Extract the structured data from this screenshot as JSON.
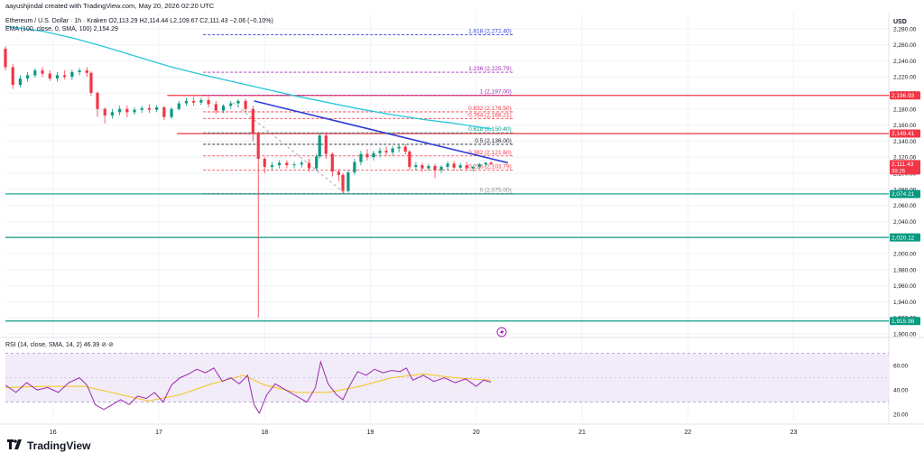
{
  "header": {
    "author_line": "aayushjindal created with TradingView.com, May 20, 2026 02:20 UTC",
    "symbol_line": "Ethereum / U.S. Dollar · 1h · Kraken  O2,113.29  H2,114.44  L2,109.67  C2,111.43  −2.06 (−0.10%)",
    "ema_line": "EMA (100, close, 0, SMA, 100)  2,154.29",
    "rsi_line": "RSI (14, close, SMA, 14, 2)  46.39  ⊘  ⊘"
  },
  "branding": {
    "logo_text": "TradingView",
    "icon": "tradingview-logo-icon"
  },
  "colors": {
    "up": "#089981",
    "down": "#f23645",
    "ema": "#26c6da",
    "trendline": "#2f3fd6",
    "resistance": "#f23645",
    "support": "#089981",
    "fib": "#9c27b0",
    "rsi": "#9c27b0",
    "rsi_band": "#ede7f6",
    "rsi_ma": "#f5c518"
  },
  "chart_data": {
    "type": "candlestick",
    "currency_label": "USD",
    "x_tick_labels": [
      "16",
      "17",
      "18",
      "19",
      "20",
      "21",
      "22",
      "23"
    ],
    "x_ticks": [
      16,
      17,
      18,
      19,
      20,
      21,
      22,
      23
    ],
    "xlim": [
      15.55,
      23.9
    ],
    "ylim": [
      1900,
      2300
    ],
    "y_ticks": [
      1900,
      1920,
      1940,
      1960,
      1980,
      2000,
      2020,
      2040,
      2060,
      2080,
      2100,
      2120,
      2140,
      2160,
      2180,
      2200,
      2220,
      2240,
      2260,
      2280
    ],
    "y_tick_labels": [
      "1,900.00",
      "1,920.00",
      "1,940.00",
      "1,960.00",
      "1,980.00",
      "2,000.00",
      "2,020.00",
      "2,040.00",
      "2,060.00",
      "2,080.00",
      "2,100.00",
      "2,120.00",
      "2,140.00",
      "2,160.00",
      "2,180.00",
      "2,200.00",
      "2,220.00",
      "2,240.00",
      "2,260.00",
      "2,280.00"
    ],
    "price_badges": [
      {
        "value": 2196.93,
        "label": "2,196.93",
        "color": "#f23645"
      },
      {
        "value": 2149.41,
        "label": "2,149.41",
        "color": "#f23645"
      },
      {
        "value": 2111.43,
        "label": "2,111.43",
        "sub": "39:26",
        "color": "#f23645"
      },
      {
        "value": 2074.21,
        "label": "2,074.21",
        "color": "#089981"
      },
      {
        "value": 2020.12,
        "label": "2,020.12",
        "color": "#089981"
      },
      {
        "value": 1915.98,
        "label": "1,915.98",
        "color": "#089981"
      }
    ],
    "horizontal_lines": [
      {
        "value": 2196.93,
        "color": "#f23645",
        "start": 17.08
      },
      {
        "value": 2149.41,
        "color": "#f23645",
        "start": 17.17
      },
      {
        "value": 2074.21,
        "color": "#089981",
        "start": 15.55
      },
      {
        "value": 2020.12,
        "color": "#089981",
        "start": 15.55
      },
      {
        "value": 1915.98,
        "color": "#089981",
        "start": 15.55
      }
    ],
    "fib_levels": [
      {
        "ratio_label": "1.618 (2,272.40)",
        "value": 2272.4,
        "color": "#2f3fd6"
      },
      {
        "ratio_label": "1.236 (2,225.79)",
        "value": 2225.79,
        "color": "#9c27b0"
      },
      {
        "ratio_label": "1 (2,197.00)",
        "value": 2197.0,
        "color": "#9c27b0"
      },
      {
        "ratio_label": "0.832 (2,176.50)",
        "value": 2176.5,
        "color": "#f23645"
      },
      {
        "ratio_label": "0.764 (2,168.21)",
        "value": 2168.21,
        "color": "#f23645"
      },
      {
        "ratio_label": "0.618 (2,150.40)",
        "value": 2150.4,
        "color": "#089981"
      },
      {
        "ratio_label": "0.5 (2,136.00)",
        "value": 2136.0,
        "color": "#131722"
      },
      {
        "ratio_label": "0.382 (2,121.60)",
        "value": 2121.6,
        "color": "#f23645"
      },
      {
        "ratio_label": "0.236 (2,103.79)",
        "value": 2103.79,
        "color": "#f23645"
      },
      {
        "ratio_label": "0 (2,075.00)",
        "value": 2075.0,
        "color": "#888888"
      }
    ],
    "fib_x_range": [
      17.42,
      20.35
    ],
    "fib_anchor_line": {
      "x": [
        17.7,
        18.75
      ],
      "y": [
        2188,
        2076
      ]
    },
    "trendline": {
      "x": [
        17.9,
        20.3
      ],
      "y": [
        2190,
        2113
      ]
    },
    "ema": {
      "name": "EMA (100)",
      "x": [
        15.55,
        15.9,
        16.2,
        16.5,
        16.8,
        17.1,
        17.4,
        17.7,
        18.0,
        18.3,
        18.6,
        18.9,
        19.2,
        19.5,
        19.8,
        20.0,
        20.15
      ],
      "y": [
        2283,
        2277,
        2268,
        2257,
        2245,
        2233,
        2223,
        2214,
        2205,
        2196,
        2188,
        2180,
        2173,
        2167,
        2162,
        2158,
        2155
      ]
    },
    "candles": [
      {
        "x": 15.55,
        "o": 2255,
        "h": 2258,
        "c": 2232,
        "l": 2228
      },
      {
        "x": 15.62,
        "o": 2232,
        "h": 2236,
        "c": 2210,
        "l": 2205
      },
      {
        "x": 15.69,
        "o": 2210,
        "h": 2222,
        "c": 2218,
        "l": 2207
      },
      {
        "x": 15.76,
        "o": 2218,
        "h": 2226,
        "c": 2222,
        "l": 2214
      },
      {
        "x": 15.83,
        "o": 2222,
        "h": 2231,
        "c": 2228,
        "l": 2219
      },
      {
        "x": 15.9,
        "o": 2228,
        "h": 2232,
        "c": 2224,
        "l": 2220
      },
      {
        "x": 15.97,
        "o": 2224,
        "h": 2228,
        "c": 2218,
        "l": 2215
      },
      {
        "x": 16.04,
        "o": 2218,
        "h": 2226,
        "c": 2222,
        "l": 2214
      },
      {
        "x": 16.11,
        "o": 2222,
        "h": 2228,
        "c": 2220,
        "l": 2217
      },
      {
        "x": 16.18,
        "o": 2220,
        "h": 2229,
        "c": 2226,
        "l": 2216
      },
      {
        "x": 16.25,
        "o": 2226,
        "h": 2231,
        "c": 2228,
        "l": 2222
      },
      {
        "x": 16.32,
        "o": 2228,
        "h": 2232,
        "c": 2225,
        "l": 2220
      },
      {
        "x": 16.36,
        "o": 2225,
        "h": 2227,
        "c": 2200,
        "l": 2196
      },
      {
        "x": 16.42,
        "o": 2200,
        "h": 2202,
        "c": 2180,
        "l": 2170
      },
      {
        "x": 16.49,
        "o": 2180,
        "h": 2182,
        "c": 2172,
        "l": 2162
      },
      {
        "x": 16.56,
        "o": 2172,
        "h": 2180,
        "c": 2176,
        "l": 2168
      },
      {
        "x": 16.63,
        "o": 2176,
        "h": 2184,
        "c": 2180,
        "l": 2172
      },
      {
        "x": 16.7,
        "o": 2180,
        "h": 2184,
        "c": 2176,
        "l": 2170
      },
      {
        "x": 16.77,
        "o": 2176,
        "h": 2182,
        "c": 2179,
        "l": 2173
      },
      {
        "x": 16.84,
        "o": 2179,
        "h": 2184,
        "c": 2181,
        "l": 2175
      },
      {
        "x": 16.91,
        "o": 2181,
        "h": 2186,
        "c": 2179,
        "l": 2175
      },
      {
        "x": 16.98,
        "o": 2179,
        "h": 2185,
        "c": 2182,
        "l": 2176
      },
      {
        "x": 17.05,
        "o": 2182,
        "h": 2184,
        "c": 2170,
        "l": 2166
      },
      {
        "x": 17.12,
        "o": 2170,
        "h": 2182,
        "c": 2180,
        "l": 2168
      },
      {
        "x": 17.19,
        "o": 2180,
        "h": 2190,
        "c": 2187,
        "l": 2178
      },
      {
        "x": 17.26,
        "o": 2187,
        "h": 2194,
        "c": 2190,
        "l": 2184
      },
      {
        "x": 17.33,
        "o": 2190,
        "h": 2195,
        "c": 2188,
        "l": 2184
      },
      {
        "x": 17.4,
        "o": 2188,
        "h": 2194,
        "c": 2191,
        "l": 2185
      },
      {
        "x": 17.47,
        "o": 2191,
        "h": 2195,
        "c": 2186,
        "l": 2182
      },
      {
        "x": 17.54,
        "o": 2186,
        "h": 2190,
        "c": 2178,
        "l": 2174
      },
      {
        "x": 17.61,
        "o": 2178,
        "h": 2186,
        "c": 2184,
        "l": 2175
      },
      {
        "x": 17.68,
        "o": 2184,
        "h": 2190,
        "c": 2187,
        "l": 2180
      },
      {
        "x": 17.75,
        "o": 2187,
        "h": 2192,
        "c": 2190,
        "l": 2183
      },
      {
        "x": 17.82,
        "o": 2190,
        "h": 2193,
        "c": 2180,
        "l": 2176
      },
      {
        "x": 17.89,
        "o": 2180,
        "h": 2184,
        "c": 2150,
        "l": 2140
      },
      {
        "x": 17.94,
        "o": 2150,
        "h": 2152,
        "c": 2118,
        "l": 1920
      },
      {
        "x": 18.0,
        "o": 2118,
        "h": 2120,
        "c": 2108,
        "l": 2100
      },
      {
        "x": 18.07,
        "o": 2108,
        "h": 2114,
        "c": 2110,
        "l": 2104
      },
      {
        "x": 18.14,
        "o": 2110,
        "h": 2116,
        "c": 2113,
        "l": 2106
      },
      {
        "x": 18.21,
        "o": 2113,
        "h": 2116,
        "c": 2110,
        "l": 2106
      },
      {
        "x": 18.28,
        "o": 2110,
        "h": 2114,
        "c": 2111,
        "l": 2106
      },
      {
        "x": 18.35,
        "o": 2111,
        "h": 2116,
        "c": 2113,
        "l": 2107
      },
      {
        "x": 18.42,
        "o": 2113,
        "h": 2118,
        "c": 2106,
        "l": 2102
      },
      {
        "x": 18.49,
        "o": 2106,
        "h": 2124,
        "c": 2121,
        "l": 2103
      },
      {
        "x": 18.52,
        "o": 2121,
        "h": 2150,
        "c": 2147,
        "l": 2118
      },
      {
        "x": 18.58,
        "o": 2147,
        "h": 2150,
        "c": 2124,
        "l": 2118
      },
      {
        "x": 18.64,
        "o": 2124,
        "h": 2126,
        "c": 2102,
        "l": 2096
      },
      {
        "x": 18.7,
        "o": 2102,
        "h": 2105,
        "c": 2098,
        "l": 2090
      },
      {
        "x": 18.74,
        "o": 2098,
        "h": 2100,
        "c": 2078,
        "l": 2075
      },
      {
        "x": 18.79,
        "o": 2078,
        "h": 2104,
        "c": 2101,
        "l": 2076
      },
      {
        "x": 18.85,
        "o": 2101,
        "h": 2118,
        "c": 2114,
        "l": 2098
      },
      {
        "x": 18.91,
        "o": 2114,
        "h": 2128,
        "c": 2124,
        "l": 2110
      },
      {
        "x": 18.97,
        "o": 2124,
        "h": 2130,
        "c": 2120,
        "l": 2116
      },
      {
        "x": 19.03,
        "o": 2120,
        "h": 2128,
        "c": 2125,
        "l": 2116
      },
      {
        "x": 19.09,
        "o": 2125,
        "h": 2132,
        "c": 2128,
        "l": 2120
      },
      {
        "x": 19.15,
        "o": 2128,
        "h": 2133,
        "c": 2126,
        "l": 2122
      },
      {
        "x": 19.21,
        "o": 2126,
        "h": 2134,
        "c": 2131,
        "l": 2122
      },
      {
        "x": 19.27,
        "o": 2131,
        "h": 2136,
        "c": 2133,
        "l": 2126
      },
      {
        "x": 19.33,
        "o": 2133,
        "h": 2136,
        "c": 2127,
        "l": 2123
      },
      {
        "x": 19.37,
        "o": 2127,
        "h": 2129,
        "c": 2108,
        "l": 2104
      },
      {
        "x": 19.43,
        "o": 2108,
        "h": 2114,
        "c": 2110,
        "l": 2104
      },
      {
        "x": 19.49,
        "o": 2110,
        "h": 2113,
        "c": 2106,
        "l": 2102
      },
      {
        "x": 19.55,
        "o": 2106,
        "h": 2112,
        "c": 2109,
        "l": 2103
      },
      {
        "x": 19.61,
        "o": 2109,
        "h": 2112,
        "c": 2104,
        "l": 2094
      },
      {
        "x": 19.67,
        "o": 2104,
        "h": 2110,
        "c": 2108,
        "l": 2100
      },
      {
        "x": 19.73,
        "o": 2108,
        "h": 2115,
        "c": 2112,
        "l": 2104
      },
      {
        "x": 19.79,
        "o": 2112,
        "h": 2115,
        "c": 2107,
        "l": 2104
      },
      {
        "x": 19.85,
        "o": 2107,
        "h": 2113,
        "c": 2110,
        "l": 2104
      },
      {
        "x": 19.91,
        "o": 2110,
        "h": 2114,
        "c": 2106,
        "l": 2103
      },
      {
        "x": 19.97,
        "o": 2106,
        "h": 2110,
        "c": 2108,
        "l": 2102
      },
      {
        "x": 20.03,
        "o": 2108,
        "h": 2113,
        "c": 2111,
        "l": 2105
      },
      {
        "x": 20.09,
        "o": 2111,
        "h": 2114,
        "c": 2113,
        "l": 2108
      },
      {
        "x": 20.14,
        "o": 2113.29,
        "h": 2114.44,
        "c": 2111.43,
        "l": 2109.67
      }
    ],
    "rsi": {
      "name": "RSI (14)",
      "ylim": [
        15,
        80
      ],
      "y_ticks": [
        20,
        40,
        60
      ],
      "y_tick_labels": [
        "20.00",
        "40.00",
        "60.00"
      ],
      "band": [
        30,
        70
      ],
      "midline": 50,
      "x": [
        15.55,
        15.65,
        15.75,
        15.85,
        15.95,
        16.05,
        16.15,
        16.25,
        16.32,
        16.4,
        16.48,
        16.56,
        16.64,
        16.72,
        16.8,
        16.88,
        16.96,
        17.04,
        17.12,
        17.2,
        17.28,
        17.36,
        17.44,
        17.52,
        17.6,
        17.68,
        17.76,
        17.84,
        17.9,
        17.95,
        18.02,
        18.1,
        18.2,
        18.3,
        18.4,
        18.48,
        18.53,
        18.6,
        18.68,
        18.74,
        18.8,
        18.88,
        18.96,
        19.04,
        19.12,
        19.2,
        19.28,
        19.34,
        19.4,
        19.5,
        19.6,
        19.7,
        19.8,
        19.9,
        20.0,
        20.07,
        20.14
      ],
      "y": [
        44,
        38,
        46,
        40,
        42,
        38,
        46,
        50,
        44,
        28,
        24,
        28,
        32,
        28,
        35,
        33,
        38,
        30,
        44,
        50,
        53,
        57,
        54,
        58,
        47,
        50,
        45,
        52,
        28,
        21,
        36,
        45,
        40,
        35,
        30,
        42,
        63,
        45,
        36,
        32,
        43,
        55,
        52,
        57,
        54,
        56,
        55,
        58,
        48,
        52,
        47,
        50,
        46,
        49,
        43,
        48,
        46.39
      ]
    },
    "rsi_ma": {
      "name": "RSI-based MA",
      "x": [
        15.55,
        15.9,
        16.3,
        16.6,
        16.9,
        17.2,
        17.5,
        17.8,
        18.0,
        18.3,
        18.6,
        18.9,
        19.2,
        19.5,
        19.8,
        20.14
      ],
      "y": [
        42,
        43,
        43,
        37,
        31,
        36,
        45,
        52,
        44,
        38,
        38,
        43,
        50,
        53,
        50,
        48
      ]
    }
  }
}
